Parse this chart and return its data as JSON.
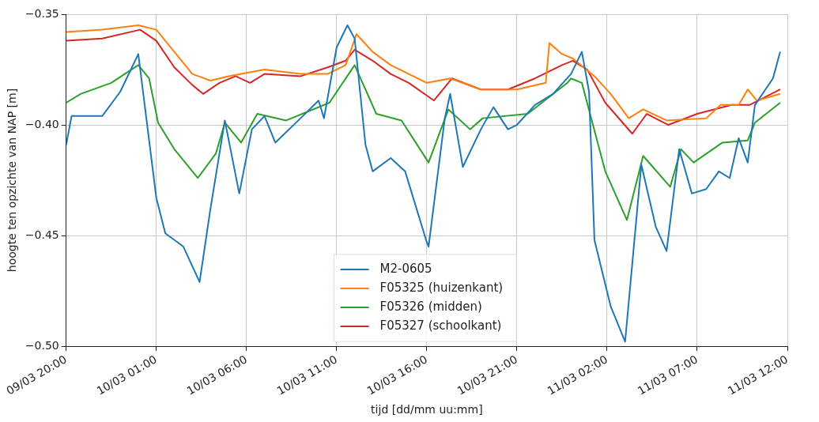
{
  "chart_data": {
    "type": "line",
    "xlabel": "tijd [dd/mm uu:mm]",
    "ylabel": "hoogte ten opzichte van NAP [m]",
    "xlim": [
      "--03-09T20:00",
      "--03-11T12:00"
    ],
    "xticks": [
      {
        "value": "--03-09T20:00",
        "label": "09/03 20:00"
      },
      {
        "value": "--03-10T01:00",
        "label": "10/03 01:00"
      },
      {
        "value": "--03-10T06:00",
        "label": "10/03 06:00"
      },
      {
        "value": "--03-10T11:00",
        "label": "10/03 11:00"
      },
      {
        "value": "--03-10T16:00",
        "label": "10/03 16:00"
      },
      {
        "value": "--03-10T21:00",
        "label": "10/03 21:00"
      },
      {
        "value": "--03-11T02:00",
        "label": "11/03 02:00"
      },
      {
        "value": "--03-11T07:00",
        "label": "11/03 07:00"
      },
      {
        "value": "--03-11T12:00",
        "label": "11/03 12:00"
      }
    ],
    "ylim": [
      -0.5,
      -0.35
    ],
    "yticks": [
      {
        "value": -0.5,
        "label": "−0.50"
      },
      {
        "value": -0.45,
        "label": "−0.45"
      },
      {
        "value": -0.4,
        "label": "−0.40"
      },
      {
        "value": -0.35,
        "label": "−0.35"
      }
    ],
    "grid": true,
    "legend": "bottom",
    "marker": "none",
    "line_style": "solid",
    "series": [
      {
        "name": "M2-0605",
        "color": "#1f77b4",
        "x": [
          "--03-09T20:00",
          "--03-09T20:18",
          "--03-09T21:00",
          "--03-09T22:00",
          "--03-09T23:00",
          "--03-10T00:00",
          "--03-10T01:00",
          "--03-10T01:30",
          "--03-10T02:30",
          "--03-10T03:24",
          "--03-10T04:00",
          "--03-10T04:48",
          "--03-10T05:36",
          "--03-10T06:18",
          "--03-10T07:00",
          "--03-10T07:36",
          "--03-10T09:00",
          "--03-10T10:00",
          "--03-10T10:18",
          "--03-10T11:00",
          "--03-10T11:36",
          "--03-10T12:00",
          "--03-10T12:36",
          "--03-10T13:00",
          "--03-10T14:00",
          "--03-10T14:48",
          "--03-10T16:00",
          "--03-10T16:06",
          "--03-10T17:00",
          "--03-10T17:18",
          "--03-10T18:00",
          "--03-10T19:00",
          "--03-10T19:42",
          "--03-10T20:30",
          "--03-10T21:00",
          "--03-10T22:00",
          "--03-10T23:00",
          "--03-11T00:00",
          "--03-11T00:36",
          "--03-11T01:00",
          "--03-11T01:18",
          "--03-11T02:12",
          "--03-11T03:00",
          "--03-11T03:54",
          "--03-11T04:42",
          "--03-11T05:18",
          "--03-11T06:00",
          "--03-11T06:42",
          "--03-11T07:30",
          "--03-11T08:12",
          "--03-11T08:48",
          "--03-11T09:18",
          "--03-11T09:48",
          "--03-11T10:12",
          "--03-11T11:12",
          "--03-11T11:36"
        ],
        "values": [
          -0.409,
          -0.396,
          -0.396,
          -0.396,
          -0.385,
          -0.368,
          -0.433,
          -0.449,
          -0.455,
          -0.471,
          -0.438,
          -0.398,
          -0.431,
          -0.402,
          -0.396,
          -0.408,
          -0.397,
          -0.389,
          -0.397,
          -0.365,
          -0.355,
          -0.361,
          -0.409,
          -0.421,
          -0.415,
          -0.421,
          -0.453,
          -0.455,
          -0.397,
          -0.386,
          -0.419,
          -0.402,
          -0.392,
          -0.402,
          -0.4,
          -0.391,
          -0.386,
          -0.377,
          -0.367,
          -0.385,
          -0.452,
          -0.482,
          -0.498,
          -0.418,
          -0.446,
          -0.457,
          -0.411,
          -0.431,
          -0.429,
          -0.421,
          -0.424,
          -0.406,
          -0.417,
          -0.391,
          -0.379,
          -0.367
        ]
      },
      {
        "name": "F05325 (huizenkant)",
        "color": "#ff7f0e",
        "x": [
          "--03-09T20:00",
          "--03-09T22:00",
          "--03-10T00:00",
          "--03-10T01:00",
          "--03-10T02:00",
          "--03-10T03:00",
          "--03-10T04:00",
          "--03-10T05:00",
          "--03-10T07:00",
          "--03-10T09:00",
          "--03-10T10:30",
          "--03-10T11:30",
          "--03-10T12:06",
          "--03-10T13:00",
          "--03-10T14:00",
          "--03-10T16:00",
          "--03-10T17:18",
          "--03-10T19:00",
          "--03-10T21:00",
          "--03-10T22:36",
          "--03-10T22:48",
          "--03-10T23:30",
          "--03-11T00:06",
          "--03-11T01:18",
          "--03-11T02:12",
          "--03-11T03:12",
          "--03-11T04:00",
          "--03-11T05:18",
          "--03-11T07:30",
          "--03-11T08:18",
          "--03-11T09:18",
          "--03-11T09:48",
          "--03-11T10:18",
          "--03-11T11:36"
        ],
        "values": [
          -0.358,
          -0.357,
          -0.355,
          -0.357,
          -0.367,
          -0.377,
          -0.38,
          -0.378,
          -0.375,
          -0.377,
          -0.377,
          -0.373,
          -0.359,
          -0.367,
          -0.373,
          -0.381,
          -0.379,
          -0.384,
          -0.384,
          -0.381,
          -0.363,
          -0.368,
          -0.37,
          -0.378,
          -0.386,
          -0.397,
          -0.393,
          -0.398,
          -0.397,
          -0.391,
          -0.391,
          -0.384,
          -0.389,
          -0.386
        ]
      },
      {
        "name": "F05326 (midden)",
        "color": "#2ca02c",
        "x": [
          "--03-09T20:00",
          "--03-09T20:48",
          "--03-09T22:30",
          "--03-10T00:00",
          "--03-10T00:36",
          "--03-10T01:06",
          "--03-10T02:00",
          "--03-10T03:18",
          "--03-10T04:18",
          "--03-10T04:48",
          "--03-10T05:42",
          "--03-10T06:36",
          "--03-10T08:12",
          "--03-10T10:36",
          "--03-10T12:00",
          "--03-10T13:12",
          "--03-10T14:36",
          "--03-10T16:06",
          "--03-10T17:12",
          "--03-10T18:24",
          "--03-10T19:06",
          "--03-10T21:36",
          "--03-10T23:48",
          "--03-11T00:00",
          "--03-11T00:36",
          "--03-11T01:54",
          "--03-11T03:06",
          "--03-11T04:00",
          "--03-11T05:30",
          "--03-11T06:06",
          "--03-11T06:48",
          "--03-11T08:24",
          "--03-11T09:48",
          "--03-11T10:12",
          "--03-11T11:36"
        ],
        "values": [
          -0.39,
          -0.386,
          -0.381,
          -0.373,
          -0.379,
          -0.399,
          -0.411,
          -0.424,
          -0.413,
          -0.399,
          -0.408,
          -0.395,
          -0.398,
          -0.39,
          -0.373,
          -0.395,
          -0.398,
          -0.417,
          -0.393,
          -0.402,
          -0.397,
          -0.395,
          -0.381,
          -0.379,
          -0.381,
          -0.421,
          -0.443,
          -0.414,
          -0.428,
          -0.411,
          -0.417,
          -0.408,
          -0.407,
          -0.399,
          -0.39
        ]
      },
      {
        "name": "F05327 (schoolkant)",
        "color": "#d62728",
        "x": [
          "--03-09T20:00",
          "--03-09T22:00",
          "--03-10T00:06",
          "--03-10T01:00",
          "--03-10T02:00",
          "--03-10T03:00",
          "--03-10T03:36",
          "--03-10T04:30",
          "--03-10T05:24",
          "--03-10T06:12",
          "--03-10T07:00",
          "--03-10T09:00",
          "--03-10T10:30",
          "--03-10T11:30",
          "--03-10T12:00",
          "--03-10T13:00",
          "--03-10T14:00",
          "--03-10T15:00",
          "--03-10T16:24",
          "--03-10T17:24",
          "--03-10T19:00",
          "--03-10T20:30",
          "--03-10T22:00",
          "--03-10T23:30",
          "--03-11T00:06",
          "--03-11T00:54",
          "--03-11T01:54",
          "--03-11T03:24",
          "--03-11T04:12",
          "--03-11T05:24",
          "--03-11T07:00",
          "--03-11T08:54",
          "--03-11T09:54",
          "--03-11T11:36"
        ],
        "values": [
          -0.362,
          -0.361,
          -0.357,
          -0.362,
          -0.374,
          -0.382,
          -0.386,
          -0.381,
          -0.378,
          -0.381,
          -0.377,
          -0.378,
          -0.374,
          -0.371,
          -0.366,
          -0.371,
          -0.377,
          -0.381,
          -0.389,
          -0.379,
          -0.384,
          -0.384,
          -0.379,
          -0.373,
          -0.371,
          -0.375,
          -0.39,
          -0.404,
          -0.395,
          -0.4,
          -0.395,
          -0.391,
          -0.391,
          -0.384
        ]
      }
    ]
  }
}
